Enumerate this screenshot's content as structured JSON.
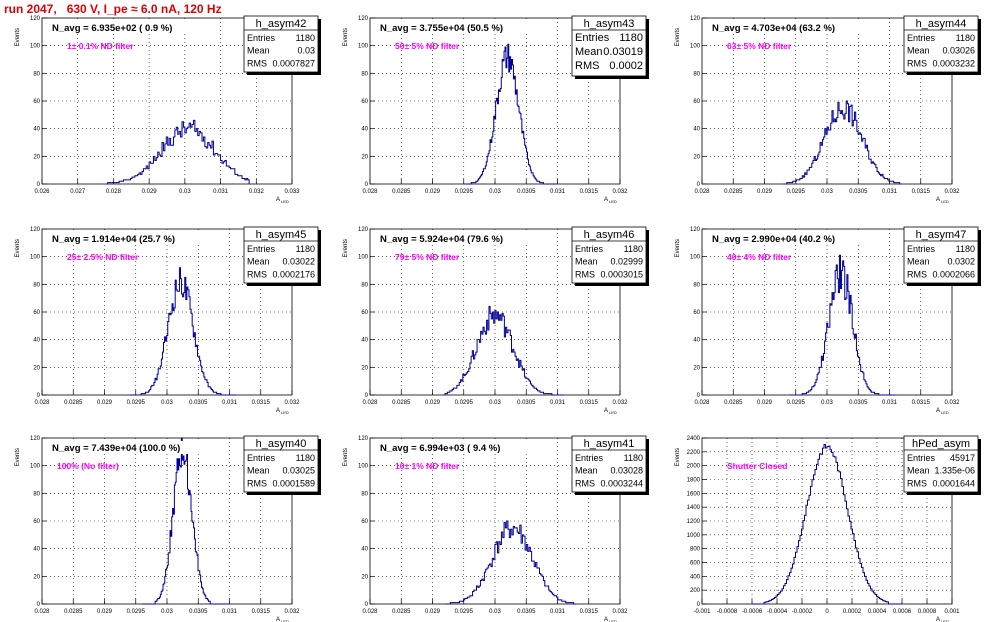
{
  "title": "run 2047,   630 V, I_pe ≈ 6.0 nA, 120 Hz",
  "y_axis_label": "Events",
  "x_axis_label": "A",
  "x_axis_sub": "LED",
  "colors": {
    "title": "#e00000",
    "annotation": "#ff00ff",
    "hist": "#000099",
    "grid": "#000000"
  },
  "chart_data": [
    {
      "type": "bar",
      "name": "h_asym42",
      "navg_label": "N_avg = 6.935e+02 ( 0.9 %)",
      "filter_label": "1± 0.1% ND filter",
      "stats": {
        "Entries": "1180",
        "Mean": "0.03",
        "RMS": "0.0007827"
      },
      "stats_big": false,
      "xlim": [
        0.026,
        0.033
      ],
      "ylim": [
        0,
        120
      ],
      "xticks": [
        "0.026",
        "0.027",
        "0.028",
        "0.029",
        "0.03",
        "0.031",
        "0.032",
        "0.033"
      ],
      "yticks": [
        "0",
        "20",
        "40",
        "60",
        "80",
        "100",
        "120"
      ],
      "hist": {
        "mu": 0.0301,
        "sigma": 0.00075,
        "peak": 40,
        "bins": 100,
        "range": [
          0.0278,
          0.0318
        ],
        "seed": 42,
        "noise": 0.18
      }
    },
    {
      "type": "bar",
      "name": "h_asym43",
      "navg_label": "N_avg = 3.755e+04 (50.5 %)",
      "filter_label": "50± 5% ND filter",
      "stats": {
        "Entries": "1180",
        "Mean": "0.03019",
        "RMS": "0.0002"
      },
      "stats_big": true,
      "xlim": [
        0.028,
        0.032
      ],
      "ylim": [
        0,
        120
      ],
      "xticks": [
        "0.028",
        "0.0285",
        "0.029",
        "0.0295",
        "0.03",
        "0.0305",
        "0.031",
        "0.0315",
        "0.032"
      ],
      "yticks": [
        "0",
        "20",
        "40",
        "60",
        "80",
        "100",
        "120"
      ],
      "hist": {
        "mu": 0.0302,
        "sigma": 0.00018,
        "peak": 92,
        "bins": 100,
        "range": [
          0.0295,
          0.031
        ],
        "seed": 43,
        "noise": 0.12
      }
    },
    {
      "type": "bar",
      "name": "h_asym44",
      "navg_label": "N_avg = 4.703e+04 (63.2 %)",
      "filter_label": "63± 5% ND filter",
      "stats": {
        "Entries": "1180",
        "Mean": "0.03026",
        "RMS": "0.0003232"
      },
      "stats_big": false,
      "xlim": [
        0.028,
        0.032
      ],
      "ylim": [
        0,
        120
      ],
      "xticks": [
        "0.028",
        "0.0285",
        "0.029",
        "0.0295",
        "0.03",
        "0.0305",
        "0.031",
        "0.0315",
        "0.032"
      ],
      "yticks": [
        "0",
        "20",
        "40",
        "60",
        "80",
        "100",
        "120"
      ],
      "hist": {
        "mu": 0.03026,
        "sigma": 0.0003,
        "peak": 55,
        "bins": 100,
        "range": [
          0.0293,
          0.0312
        ],
        "seed": 44,
        "noise": 0.16
      }
    },
    {
      "type": "bar",
      "name": "h_asym45",
      "navg_label": "N_avg = 1.914e+04 (25.7 %)",
      "filter_label": "25± 2.5% ND filter",
      "stats": {
        "Entries": "1180",
        "Mean": "0.03022",
        "RMS": "0.0002176"
      },
      "stats_big": false,
      "xlim": [
        0.028,
        0.032
      ],
      "ylim": [
        0,
        120
      ],
      "xticks": [
        "0.028",
        "0.0285",
        "0.029",
        "0.0295",
        "0.03",
        "0.0305",
        "0.031",
        "0.0315",
        "0.032"
      ],
      "yticks": [
        "0",
        "20",
        "40",
        "60",
        "80",
        "100",
        "120"
      ],
      "hist": {
        "mu": 0.03022,
        "sigma": 0.0002,
        "peak": 82,
        "bins": 100,
        "range": [
          0.0294,
          0.0311
        ],
        "seed": 45,
        "noise": 0.14
      }
    },
    {
      "type": "bar",
      "name": "h_asym46",
      "navg_label": "N_avg = 5.924e+04 (79.6 %)",
      "filter_label": "79± 5% ND filter",
      "stats": {
        "Entries": "1180",
        "Mean": "0.02999",
        "RMS": "0.0003015"
      },
      "stats_big": false,
      "xlim": [
        0.028,
        0.032
      ],
      "ylim": [
        0,
        120
      ],
      "xticks": [
        "0.028",
        "0.0285",
        "0.029",
        "0.0295",
        "0.03",
        "0.0305",
        "0.031",
        "0.0315",
        "0.032"
      ],
      "yticks": [
        "0",
        "20",
        "40",
        "60",
        "80",
        "100",
        "120"
      ],
      "hist": {
        "mu": 0.03,
        "sigma": 0.00029,
        "peak": 58,
        "bins": 100,
        "range": [
          0.0292,
          0.0311
        ],
        "seed": 46,
        "noise": 0.16
      }
    },
    {
      "type": "bar",
      "name": "h_asym47",
      "navg_label": "N_avg = 2.990e+04 (40.2 %)",
      "filter_label": "40± 4% ND filter",
      "stats": {
        "Entries": "1180",
        "Mean": "0.0302",
        "RMS": "0.0002066"
      },
      "stats_big": false,
      "xlim": [
        0.028,
        0.032
      ],
      "ylim": [
        0,
        120
      ],
      "xticks": [
        "0.028",
        "0.0285",
        "0.029",
        "0.0295",
        "0.03",
        "0.0305",
        "0.031",
        "0.0315",
        "0.032"
      ],
      "yticks": [
        "0",
        "20",
        "40",
        "60",
        "80",
        "100",
        "120"
      ],
      "hist": {
        "mu": 0.03022,
        "sigma": 0.00019,
        "peak": 88,
        "bins": 100,
        "range": [
          0.0294,
          0.0311
        ],
        "seed": 47,
        "noise": 0.16
      }
    },
    {
      "type": "bar",
      "name": "h_asym40",
      "navg_label": "N_avg = 7.439e+04 (100.0 %)",
      "filter_label": "100% (No filter)",
      "stats": {
        "Entries": "1180",
        "Mean": "0.03025",
        "RMS": "0.0001589"
      },
      "stats_big": false,
      "xlim": [
        0.028,
        0.032
      ],
      "ylim": [
        0,
        120
      ],
      "xticks": [
        "0.028",
        "0.0285",
        "0.029",
        "0.0295",
        "0.03",
        "0.0305",
        "0.031",
        "0.0315",
        "0.032"
      ],
      "yticks": [
        "0",
        "20",
        "40",
        "60",
        "80",
        "100",
        "120"
      ],
      "hist": {
        "mu": 0.03025,
        "sigma": 0.00015,
        "peak": 110,
        "bins": 100,
        "range": [
          0.0296,
          0.031
        ],
        "seed": 40,
        "noise": 0.12
      }
    },
    {
      "type": "bar",
      "name": "h_asym41",
      "navg_label": "N_avg = 6.994e+03 ( 9.4 %)",
      "filter_label": "10± 1% ND filter",
      "stats": {
        "Entries": "1180",
        "Mean": "0.03028",
        "RMS": "0.0003244"
      },
      "stats_big": false,
      "xlim": [
        0.028,
        0.032
      ],
      "ylim": [
        0,
        120
      ],
      "xticks": [
        "0.028",
        "0.0285",
        "0.029",
        "0.0295",
        "0.03",
        "0.0305",
        "0.031",
        "0.0315",
        "0.032"
      ],
      "yticks": [
        "0",
        "20",
        "40",
        "60",
        "80",
        "100",
        "120"
      ],
      "hist": {
        "mu": 0.03028,
        "sigma": 0.00032,
        "peak": 55,
        "bins": 100,
        "range": [
          0.0292,
          0.0313
        ],
        "seed": 41,
        "noise": 0.16
      }
    },
    {
      "type": "bar",
      "name": "hPed_asym",
      "navg_label": "",
      "filter_label": "Shutter Closed",
      "stats": {
        "Entries": "45917",
        "Mean": "1.335e-06",
        "RMS": "0.0001644"
      },
      "stats_big": false,
      "xlim": [
        -0.001,
        0.001
      ],
      "ylim": [
        0,
        2400
      ],
      "xticks": [
        "-0.001",
        "-0.0008",
        "-0.0006",
        "-0.0004",
        "-0.0002",
        "0",
        "0.0002",
        "0.0004",
        "0.0006",
        "0.0008",
        "0.001"
      ],
      "yticks": [
        "0",
        "200",
        "400",
        "600",
        "800",
        "1000",
        "1200",
        "1400",
        "1600",
        "1800",
        "2000",
        "2200",
        "2400"
      ],
      "hist": {
        "mu": 0.0,
        "sigma": 0.000164,
        "peak": 2280,
        "bins": 100,
        "range": [
          -0.0006,
          0.0006
        ],
        "seed": 9,
        "noise": 0.02
      }
    }
  ]
}
